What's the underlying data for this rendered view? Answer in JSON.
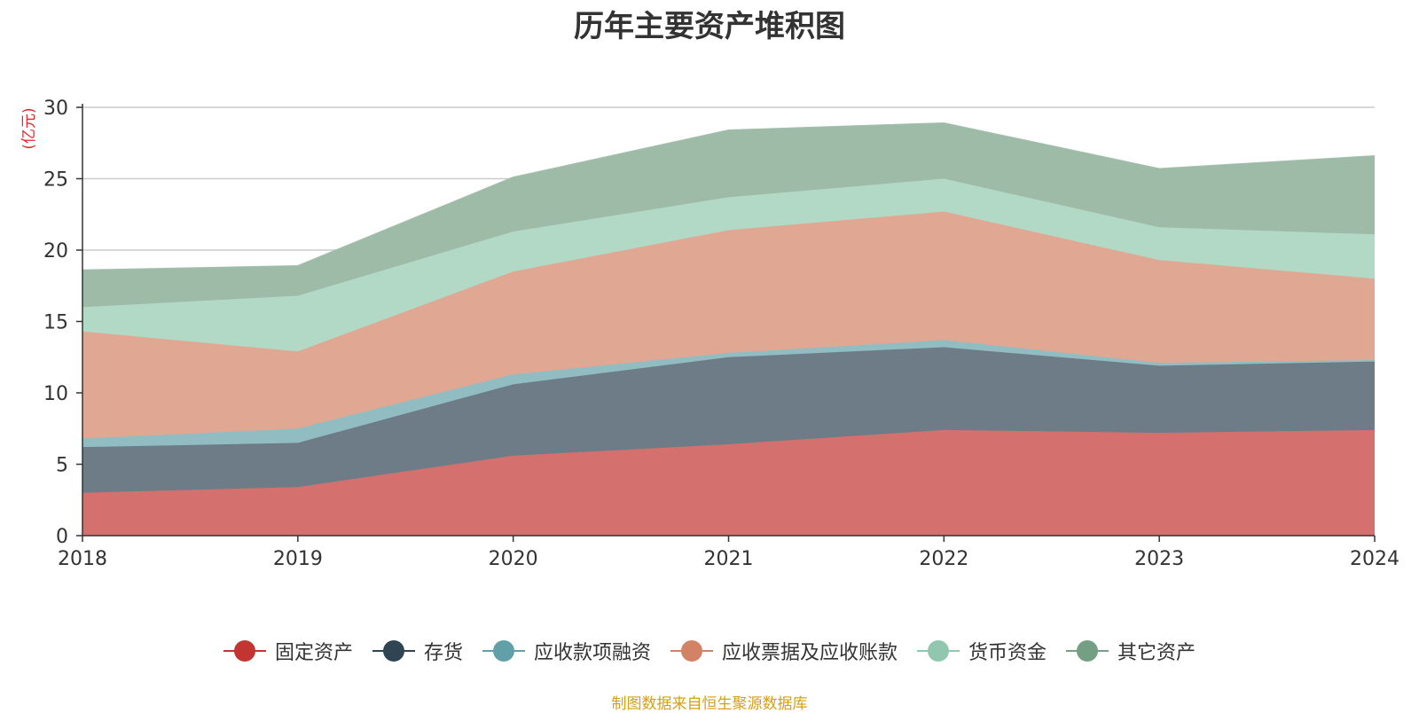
{
  "chart_data": {
    "type": "area",
    "stacked": true,
    "title": "历年主要资产堆积图",
    "unit_label": "(亿元)",
    "categories": [
      "2018",
      "2019",
      "2020",
      "2021",
      "2022",
      "2023",
      "2024"
    ],
    "ylim": [
      0,
      30
    ],
    "yticks": [
      0,
      5,
      10,
      15,
      20,
      25,
      30
    ],
    "series": [
      {
        "name": "固定资产",
        "color": "#c23531",
        "fill": "#d4706e",
        "values": [
          3.0,
          3.4,
          5.6,
          6.4,
          7.4,
          7.2,
          7.4
        ]
      },
      {
        "name": "存货",
        "color": "#2f4554",
        "fill": "#6d7c87",
        "values": [
          3.2,
          3.1,
          5.0,
          6.1,
          5.8,
          4.7,
          4.8
        ]
      },
      {
        "name": "应收款项融资",
        "color": "#61a0a8",
        "fill": "#90bcc2",
        "values": [
          0.6,
          1.0,
          0.7,
          0.3,
          0.5,
          0.2,
          0.1
        ]
      },
      {
        "name": "应收票据及应收账款",
        "color": "#d48265",
        "fill": "#e0a792",
        "values": [
          7.5,
          5.4,
          7.2,
          8.6,
          9.0,
          7.2,
          5.7
        ]
      },
      {
        "name": "货币资金",
        "color": "#91c7ae",
        "fill": "#b2d8c6",
        "values": [
          1.7,
          3.9,
          2.8,
          2.3,
          2.3,
          2.3,
          3.1
        ]
      },
      {
        "name": "其它资产",
        "color": "#749f83",
        "fill": "#9ebba8",
        "values": [
          2.6,
          2.1,
          3.8,
          4.7,
          3.9,
          4.1,
          5.5
        ]
      }
    ],
    "legend_position": "bottom-center",
    "grid": true
  },
  "footer": {
    "source": "制图数据来自恒生聚源数据库"
  }
}
